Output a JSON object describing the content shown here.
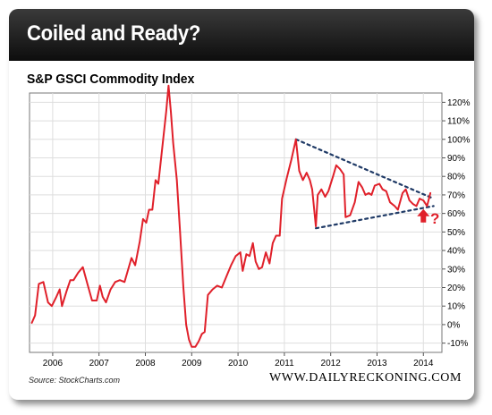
{
  "header": {
    "title": "Coiled and Ready?"
  },
  "footer": {
    "source": "Source: StockCharts.com",
    "site": "WWW.DAILYRECKONING.COM"
  },
  "colors": {
    "series": "#e0202a",
    "trendline": "#1f3a66",
    "arrow": "#e0202a",
    "header": "#1a1a1a"
  },
  "chart_data": {
    "type": "line",
    "title": "S&P GSCI Commodity Index",
    "xlabel": "",
    "ylabel": "",
    "x_tick_labels": [
      "2006",
      "2007",
      "2008",
      "2009",
      "2010",
      "2011",
      "2012",
      "2013",
      "2014"
    ],
    "x_range": [
      2005.5,
      2014.4
    ],
    "y_tick_labels": [
      "-10%",
      "0%",
      "10%",
      "20%",
      "30%",
      "40%",
      "50%",
      "60%",
      "70%",
      "80%",
      "90%",
      "100%",
      "110%",
      "120%"
    ],
    "ylim": [
      -15,
      125
    ],
    "grid": true,
    "series": [
      {
        "values": [
          [
            2005.55,
            1
          ],
          [
            2005.62,
            5
          ],
          [
            2005.7,
            22
          ],
          [
            2005.8,
            23
          ],
          [
            2005.9,
            12
          ],
          [
            2005.98,
            10
          ],
          [
            2006.08,
            15
          ],
          [
            2006.15,
            19
          ],
          [
            2006.2,
            10
          ],
          [
            2006.3,
            18
          ],
          [
            2006.38,
            24
          ],
          [
            2006.45,
            24
          ],
          [
            2006.55,
            28
          ],
          [
            2006.65,
            31
          ],
          [
            2006.75,
            22
          ],
          [
            2006.85,
            13
          ],
          [
            2006.95,
            13
          ],
          [
            2007.02,
            21
          ],
          [
            2007.08,
            15
          ],
          [
            2007.15,
            12
          ],
          [
            2007.25,
            19
          ],
          [
            2007.35,
            23
          ],
          [
            2007.45,
            24
          ],
          [
            2007.55,
            23
          ],
          [
            2007.62,
            29
          ],
          [
            2007.7,
            36
          ],
          [
            2007.78,
            32
          ],
          [
            2007.88,
            45
          ],
          [
            2007.95,
            57
          ],
          [
            2008.02,
            55
          ],
          [
            2008.08,
            62
          ],
          [
            2008.15,
            62
          ],
          [
            2008.22,
            78
          ],
          [
            2008.28,
            76
          ],
          [
            2008.35,
            92
          ],
          [
            2008.45,
            115
          ],
          [
            2008.5,
            129
          ],
          [
            2008.55,
            115
          ],
          [
            2008.6,
            98
          ],
          [
            2008.68,
            78
          ],
          [
            2008.75,
            50
          ],
          [
            2008.82,
            20
          ],
          [
            2008.88,
            0
          ],
          [
            2008.94,
            -8
          ],
          [
            2009.0,
            -12
          ],
          [
            2009.08,
            -12
          ],
          [
            2009.15,
            -9
          ],
          [
            2009.22,
            -5
          ],
          [
            2009.28,
            -4
          ],
          [
            2009.35,
            16
          ],
          [
            2009.45,
            19
          ],
          [
            2009.55,
            21
          ],
          [
            2009.65,
            20
          ],
          [
            2009.75,
            26
          ],
          [
            2009.85,
            32
          ],
          [
            2009.95,
            37
          ],
          [
            2010.05,
            39
          ],
          [
            2010.1,
            29
          ],
          [
            2010.18,
            38
          ],
          [
            2010.25,
            37
          ],
          [
            2010.32,
            44
          ],
          [
            2010.38,
            34
          ],
          [
            2010.45,
            30
          ],
          [
            2010.52,
            31
          ],
          [
            2010.6,
            39
          ],
          [
            2010.68,
            33
          ],
          [
            2010.75,
            44
          ],
          [
            2010.82,
            48
          ],
          [
            2010.9,
            48
          ],
          [
            2010.95,
            68
          ],
          [
            2011.05,
            79
          ],
          [
            2011.15,
            89
          ],
          [
            2011.25,
            100
          ],
          [
            2011.32,
            83
          ],
          [
            2011.4,
            78
          ],
          [
            2011.48,
            82
          ],
          [
            2011.55,
            78
          ],
          [
            2011.6,
            73
          ],
          [
            2011.68,
            53
          ],
          [
            2011.72,
            70
          ],
          [
            2011.8,
            73
          ],
          [
            2011.88,
            69
          ],
          [
            2011.95,
            72
          ],
          [
            2012.05,
            80
          ],
          [
            2012.12,
            86
          ],
          [
            2012.2,
            84
          ],
          [
            2012.28,
            81
          ],
          [
            2012.32,
            58
          ],
          [
            2012.42,
            59
          ],
          [
            2012.52,
            66
          ],
          [
            2012.6,
            77
          ],
          [
            2012.68,
            74
          ],
          [
            2012.75,
            70
          ],
          [
            2012.82,
            71
          ],
          [
            2012.88,
            70
          ],
          [
            2012.95,
            75
          ],
          [
            2013.05,
            76
          ],
          [
            2013.12,
            73
          ],
          [
            2013.2,
            72
          ],
          [
            2013.28,
            66
          ],
          [
            2013.38,
            64
          ],
          [
            2013.45,
            62
          ],
          [
            2013.55,
            71
          ],
          [
            2013.62,
            73
          ],
          [
            2013.7,
            67
          ],
          [
            2013.78,
            65
          ],
          [
            2013.85,
            64
          ],
          [
            2013.92,
            68
          ],
          [
            2014.0,
            67
          ],
          [
            2014.08,
            64
          ],
          [
            2014.15,
            71
          ]
        ]
      }
    ],
    "annotations": [
      {
        "type": "trendline",
        "from": [
          2011.25,
          100
        ],
        "to": [
          2014.22,
          68
        ]
      },
      {
        "type": "trendline",
        "from": [
          2011.68,
          52
        ],
        "to": [
          2014.22,
          64
        ]
      },
      {
        "type": "arrow-up",
        "at": [
          2014.0,
          58
        ]
      },
      {
        "type": "text",
        "text": "?",
        "at": [
          2014.15,
          58
        ]
      }
    ]
  }
}
